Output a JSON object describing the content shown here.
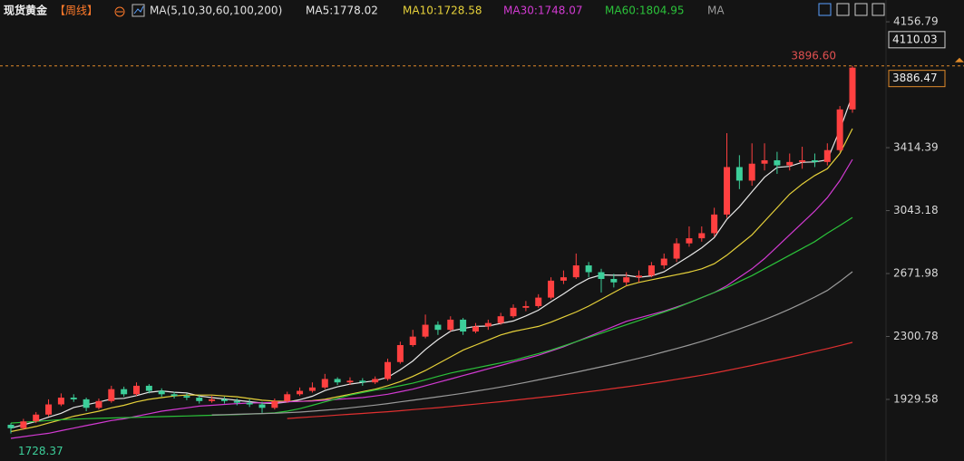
{
  "chart_data": {
    "type": "candlestick",
    "title": "现货黄金",
    "period": "【周线】",
    "indicator": "MA(5,10,30,60,100,200)",
    "up_color": "#ff4040",
    "down_color": "#3ccf9a",
    "ylim": [
      1566.3,
      4285.4
    ],
    "yticks": [
      1929.58,
      2300.78,
      2671.98,
      3043.18,
      3414.39,
      4156.79
    ],
    "grid": false,
    "last_price": 3886.47,
    "ref_price": 4110.03,
    "high_marker": {
      "value": 3896.6,
      "label": "3896.60"
    },
    "low_marker": 1728.37,
    "open": [
      1780,
      1760,
      1800,
      1840,
      1900,
      1940,
      1930,
      1880,
      1920,
      1990,
      1960,
      2010,
      1980,
      1960,
      1950,
      1940,
      1920,
      1930,
      1920,
      1910,
      1900,
      1880,
      1920,
      1960,
      1980,
      2000,
      2050,
      2030,
      2040,
      2030,
      2050,
      2150,
      2250,
      2300,
      2370,
      2340,
      2400,
      2330,
      2360,
      2380,
      2420,
      2470,
      2480,
      2530,
      2630,
      2650,
      2720,
      2680,
      2640,
      2620,
      2650,
      2660,
      2720,
      2760,
      2850,
      2880,
      2910,
      3020,
      3300,
      3220,
      3320,
      3340,
      3310,
      3330,
      3340,
      3330,
      3400,
      3640
    ],
    "high": [
      1790,
      1815,
      1855,
      1930,
      1965,
      1960,
      1940,
      1935,
      2010,
      2005,
      2030,
      2020,
      1995,
      1975,
      1965,
      1955,
      1950,
      1945,
      1935,
      1930,
      1915,
      1935,
      1975,
      2000,
      2030,
      2080,
      2060,
      2060,
      2055,
      2065,
      2170,
      2270,
      2340,
      2430,
      2390,
      2420,
      2410,
      2380,
      2400,
      2440,
      2490,
      2510,
      2550,
      2650,
      2690,
      2790,
      2740,
      2700,
      2670,
      2680,
      2690,
      2740,
      2790,
      2880,
      2950,
      2950,
      3060,
      3500,
      3370,
      3440,
      3440,
      3390,
      3380,
      3420,
      3380,
      3440,
      3660,
      3896.6
    ],
    "low": [
      1728.37,
      1750,
      1790,
      1830,
      1890,
      1915,
      1860,
      1870,
      1910,
      1945,
      1950,
      1965,
      1945,
      1935,
      1925,
      1905,
      1910,
      1905,
      1895,
      1885,
      1850,
      1870,
      1910,
      1950,
      1970,
      1990,
      2015,
      2015,
      2010,
      2020,
      2040,
      2140,
      2240,
      2290,
      2310,
      2330,
      2310,
      2320,
      2340,
      2370,
      2410,
      2450,
      2470,
      2520,
      2610,
      2640,
      2650,
      2560,
      2590,
      2600,
      2620,
      2650,
      2700,
      2740,
      2830,
      2860,
      2890,
      3000,
      3170,
      3190,
      3280,
      3260,
      3280,
      3290,
      3300,
      3310,
      3390,
      3620
    ],
    "close": [
      1760,
      1800,
      1840,
      1900,
      1940,
      1930,
      1880,
      1920,
      1990,
      1960,
      2010,
      1980,
      1960,
      1950,
      1940,
      1920,
      1930,
      1920,
      1910,
      1900,
      1880,
      1920,
      1960,
      1980,
      2000,
      2050,
      2030,
      2040,
      2030,
      2050,
      2150,
      2250,
      2300,
      2370,
      2340,
      2400,
      2330,
      2360,
      2380,
      2420,
      2470,
      2480,
      2530,
      2630,
      2650,
      2720,
      2680,
      2640,
      2620,
      2650,
      2660,
      2720,
      2760,
      2850,
      2880,
      2910,
      3020,
      3300,
      3220,
      3320,
      3340,
      3310,
      3330,
      3340,
      3330,
      3400,
      3640,
      3886.47
    ],
    "series": [
      {
        "name": "MA5:1778.02",
        "color": "#e8e8e8",
        "values": [
          1760,
          1780,
          1800,
          1825,
          1848,
          1882,
          1898,
          1914,
          1932,
          1936,
          1952,
          1972,
          1980,
          1972,
          1968,
          1950,
          1940,
          1932,
          1924,
          1916,
          1908,
          1906,
          1914,
          1928,
          1948,
          1982,
          2004,
          2020,
          2030,
          2040,
          2060,
          2104,
          2156,
          2224,
          2282,
          2332,
          2348,
          2360,
          2362,
          2378,
          2392,
          2422,
          2456,
          2506,
          2552,
          2602,
          2642,
          2664,
          2662,
          2662,
          2650,
          2658,
          2682,
          2728,
          2774,
          2824,
          2884,
          2992,
          3066,
          3154,
          3240,
          3298,
          3304,
          3328,
          3330,
          3342,
          3520,
          3725
        ]
      },
      {
        "name": "MA10:1728.58",
        "color": "#e6d13a",
        "values": [
          1740,
          1755,
          1770,
          1790,
          1810,
          1830,
          1845,
          1860,
          1880,
          1895,
          1915,
          1930,
          1940,
          1950,
          1955,
          1955,
          1955,
          1950,
          1945,
          1935,
          1925,
          1920,
          1918,
          1918,
          1922,
          1930,
          1945,
          1960,
          1975,
          1990,
          2010,
          2035,
          2065,
          2100,
          2140,
          2180,
          2220,
          2250,
          2280,
          2310,
          2330,
          2345,
          2360,
          2385,
          2415,
          2445,
          2480,
          2520,
          2560,
          2600,
          2620,
          2635,
          2650,
          2665,
          2680,
          2700,
          2730,
          2780,
          2840,
          2900,
          2980,
          3060,
          3140,
          3200,
          3250,
          3290,
          3380,
          3527
        ]
      },
      {
        "name": "MA30:1748.07",
        "color": "#d23ad2",
        "values": [
          1700,
          1710,
          1720,
          1730,
          1745,
          1760,
          1775,
          1790,
          1805,
          1815,
          1830,
          1845,
          1860,
          1870,
          1880,
          1890,
          1895,
          1900,
          1905,
          1908,
          1910,
          1912,
          1915,
          1918,
          1920,
          1925,
          1930,
          1935,
          1940,
          1950,
          1960,
          1975,
          1990,
          2010,
          2030,
          2050,
          2070,
          2090,
          2110,
          2130,
          2150,
          2170,
          2190,
          2215,
          2240,
          2270,
          2300,
          2330,
          2360,
          2390,
          2410,
          2430,
          2450,
          2475,
          2500,
          2530,
          2560,
          2600,
          2650,
          2700,
          2760,
          2830,
          2900,
          2970,
          3040,
          3120,
          3220,
          3345
        ]
      },
      {
        "name": "MA60:1804.95",
        "color": "#2bc23a",
        "values": [
          1790,
          1795,
          1800,
          1805,
          1810,
          1813,
          1816,
          1818,
          1820,
          1822,
          1824,
          1826,
          1828,
          1830,
          1832,
          1834,
          1836,
          1838,
          1840,
          1843,
          1846,
          1850,
          1860,
          1875,
          1895,
          1915,
          1935,
          1955,
          1970,
          1985,
          1995,
          2010,
          2025,
          2045,
          2065,
          2085,
          2100,
          2115,
          2130,
          2145,
          2160,
          2180,
          2200,
          2220,
          2245,
          2270,
          2295,
          2320,
          2345,
          2370,
          2395,
          2420,
          2445,
          2470,
          2500,
          2530,
          2560,
          2590,
          2625,
          2660,
          2700,
          2740,
          2780,
          2820,
          2860,
          2910,
          2955,
          3003
        ]
      },
      {
        "name": "MA",
        "color": "#9a9a9a",
        "values": [
          null,
          null,
          null,
          null,
          null,
          null,
          null,
          null,
          null,
          null,
          null,
          null,
          null,
          null,
          null,
          null,
          1838,
          1840,
          1842,
          1844,
          1846,
          1848,
          1851,
          1855,
          1860,
          1866,
          1872,
          1880,
          1888,
          1896,
          1905,
          1915,
          1925,
          1935,
          1945,
          1955,
          1966,
          1978,
          1990,
          2003,
          2016,
          2030,
          2045,
          2060,
          2075,
          2090,
          2106,
          2122,
          2138,
          2155,
          2172,
          2190,
          2210,
          2230,
          2250,
          2272,
          2295,
          2320,
          2345,
          2372,
          2400,
          2430,
          2462,
          2497,
          2533,
          2572,
          2625,
          2683
        ]
      },
      {
        "color": "#e03030",
        "values": [
          null,
          null,
          null,
          null,
          null,
          null,
          null,
          null,
          null,
          null,
          null,
          null,
          null,
          null,
          null,
          null,
          null,
          null,
          null,
          null,
          null,
          null,
          1817,
          1822,
          1827,
          1832,
          1837,
          1842,
          1847,
          1852,
          1857,
          1863,
          1869,
          1875,
          1881,
          1888,
          1895,
          1902,
          1909,
          1916,
          1924,
          1932,
          1940,
          1948,
          1957,
          1966,
          1975,
          1984,
          1994,
          2004,
          2014,
          2025,
          2036,
          2048,
          2060,
          2072,
          2085,
          2100,
          2115,
          2130,
          2146,
          2162,
          2178,
          2195,
          2212,
          2229,
          2247,
          2266
        ]
      }
    ]
  }
}
